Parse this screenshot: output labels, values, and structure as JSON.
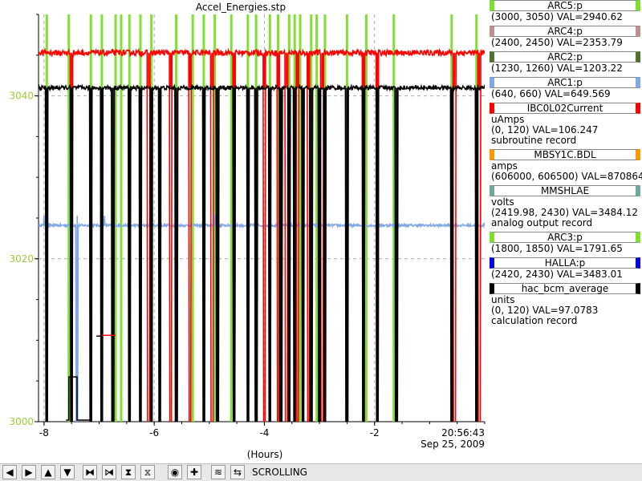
{
  "window": {
    "title": "Accel_Energies.stp"
  },
  "chart_data": {
    "type": "line",
    "title": "Accel_Energies.stp",
    "xlabel": "(Hours)",
    "ylabel": "",
    "xlim": [
      -8.1,
      0.0
    ],
    "ylim": [
      3000,
      3050
    ],
    "x_ticks": [
      "-8",
      "-6",
      "-4",
      "-2"
    ],
    "y_ticks": [
      "3000",
      "3020",
      "3040"
    ],
    "x_end_label": "20:56:43",
    "x_end_date": "Sep 25, 2009",
    "grid": true,
    "series": [
      {
        "name": "ARC5:p",
        "color": "#80e030",
        "baseline": 3046.5,
        "drop_times": [
          -7.95,
          -7.55,
          -7.15,
          -6.95,
          -6.7,
          -6.6,
          -6.45,
          -6.25,
          -6.05,
          -5.6,
          -5.3,
          -5.1,
          -4.9,
          -4.6,
          -4.3,
          -4.15,
          -3.9,
          -3.75,
          -3.55,
          -3.45,
          -3.35,
          -3.15,
          -3.05,
          -2.9,
          -2.5,
          -2.15,
          -1.65,
          -0.6,
          -0.15
        ]
      },
      {
        "name": "IBC0L02Current",
        "color": "#ff0000",
        "baseline": 3045.3,
        "noise": 0.35,
        "drop_times": [
          -7.5,
          -6.1,
          -5.7,
          -5.35,
          -4.95,
          -4.55,
          -4.0,
          -3.75,
          -3.6,
          -3.4,
          -3.2,
          -2.95,
          -2.2,
          -1.95,
          -0.55,
          -0.1
        ]
      },
      {
        "name": "hac_bcm_average",
        "color": "#000000",
        "baseline": 3041.0,
        "noise": 0.25,
        "drop_times": [
          -7.95,
          -7.5,
          -7.15,
          -6.95,
          -6.75,
          -6.45,
          -6.25,
          -6.05,
          -5.9,
          -5.6,
          -5.1,
          -4.85,
          -4.55,
          -4.3,
          -4.15,
          -3.9,
          -3.7,
          -3.55,
          -3.45,
          -3.3,
          -3.15,
          -3.0,
          -2.9,
          -2.5,
          -2.2,
          -1.95,
          -1.6,
          -0.6,
          -0.15
        ]
      },
      {
        "name": "ARC1:p",
        "color": "#80a8e8",
        "baseline": 3024.1,
        "noise": 0.15,
        "spike_times": [
          -8.0,
          -7.4,
          -6.9,
          -4.9,
          -3.9
        ],
        "drop_times": [
          -7.4
        ]
      }
    ],
    "segments": [
      {
        "series": "hac_bcm_average",
        "x": [
          -7.6,
          -7.55,
          -7.55,
          -7.4,
          -7.4,
          -7.15
        ],
        "y": [
          3000.2,
          3000.2,
          3005.5,
          3005.5,
          3000.2,
          3000.2
        ]
      },
      {
        "series": "hac_bcm_average",
        "x": [
          -7.05,
          -6.95,
          -6.95,
          -6.75
        ],
        "y": [
          3010.5,
          3010.5,
          3010.6,
          3010.6
        ]
      },
      {
        "series": "IBC0L02Current",
        "x": [
          -6.95,
          -6.7
        ],
        "y": [
          3010.6,
          3010.6
        ]
      }
    ]
  },
  "legend": [
    {
      "name": "ARC5:p",
      "color": "#80e030",
      "lines": [
        "(3000, 3050) VAL=2940.62"
      ]
    },
    {
      "name": "ARC4:p",
      "color": "#c09090",
      "lines": [
        "(2400, 2450) VAL=2353.79"
      ]
    },
    {
      "name": "ARC2:p",
      "color": "#507030",
      "lines": [
        "(1230, 1260) VAL=1203.22"
      ]
    },
    {
      "name": "ARC1:p",
      "color": "#80a8e8",
      "lines": [
        "(640, 660) VAL=649.569"
      ]
    },
    {
      "name": "IBC0L02Current",
      "color": "#ff0000",
      "lines": [
        "uAmps",
        "(0, 120) VAL=106.247",
        "subroutine record"
      ]
    },
    {
      "name": "MBSY1C.BDL",
      "color": "#ff9900",
      "lines": [
        "amps",
        "(606000, 606500) VAL=870864"
      ]
    },
    {
      "name": "MMSHLAE",
      "color": "#70a8a0",
      "lines": [
        "volts",
        "(2419.98, 2430) VAL=3484.12",
        "analog output record"
      ]
    },
    {
      "name": "ARC3:p",
      "color": "#80e030",
      "lines": [
        "(1800, 1850) VAL=1791.65"
      ]
    },
    {
      "name": "HALLA:p",
      "color": "#0000dd",
      "lines": [
        "(2420, 2430) VAL=3483.01"
      ]
    },
    {
      "name": "hac_bcm_average",
      "color": "#000000",
      "lines": [
        "units",
        "(0, 120) VAL=97.0783",
        "calculation record"
      ]
    }
  ],
  "toolbar": {
    "buttons": [
      {
        "name": "arrow-left-icon",
        "glyph": "◀"
      },
      {
        "name": "arrow-right-icon",
        "glyph": "▶"
      },
      {
        "name": "arrow-up-icon",
        "glyph": "▲"
      },
      {
        "name": "arrow-down-icon",
        "glyph": "▼"
      },
      {
        "name": "zoom-x-in-icon",
        "glyph": "⧓"
      },
      {
        "name": "zoom-x-out-icon",
        "glyph": "⧒"
      },
      {
        "name": "zoom-y-in-icon",
        "glyph": "⧗"
      },
      {
        "name": "zoom-y-out-icon",
        "glyph": "⧖"
      },
      {
        "name": "reset-icon",
        "glyph": "◉"
      },
      {
        "name": "add-icon",
        "glyph": "✚"
      },
      {
        "name": "config-icon",
        "glyph": "≋"
      },
      {
        "name": "scroll-icon",
        "glyph": "⇆"
      }
    ],
    "status": "SCROLLING"
  }
}
